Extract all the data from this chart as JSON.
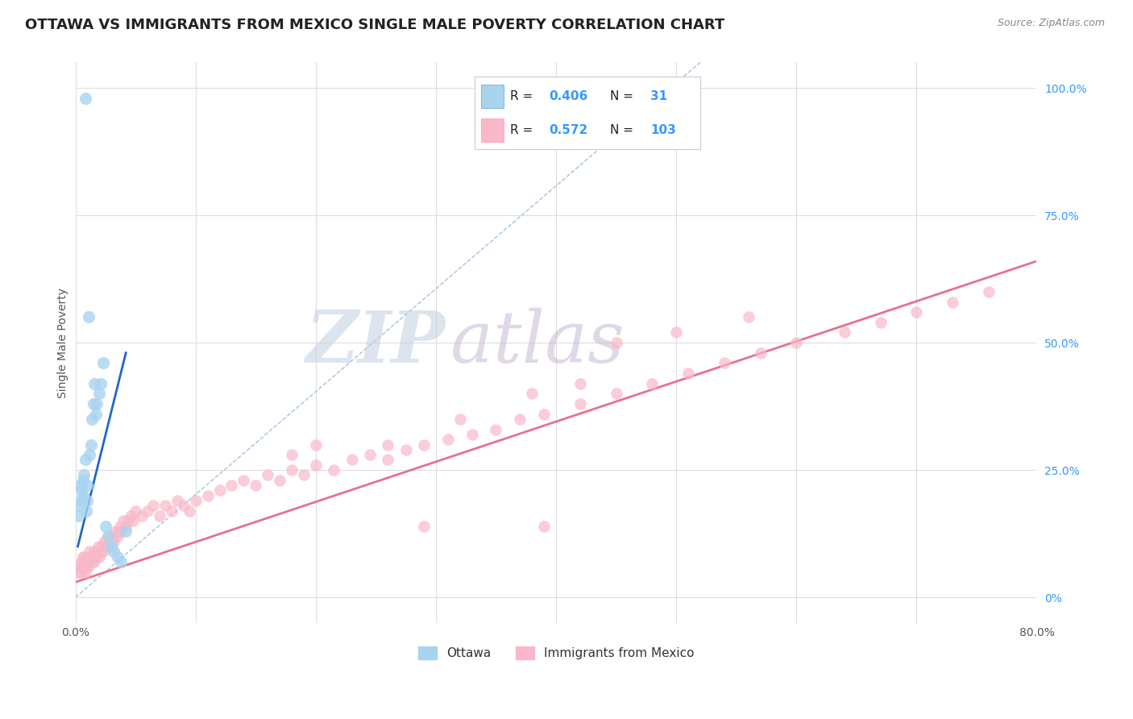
{
  "title": "OTTAWA VS IMMIGRANTS FROM MEXICO SINGLE MALE POVERTY CORRELATION CHART",
  "source": "Source: ZipAtlas.com",
  "ylabel": "Single Male Poverty",
  "xlim": [
    0.0,
    0.8
  ],
  "ylim": [
    -0.05,
    1.05
  ],
  "y_ticks_right": [
    0.0,
    0.25,
    0.5,
    0.75,
    1.0
  ],
  "y_tick_labels_right": [
    "0%",
    "25.0%",
    "50.0%",
    "75.0%",
    "100.0%"
  ],
  "ottawa_color": "#a8d4f0",
  "mexico_color": "#f9b8c8",
  "ottawa_line_color": "#2266cc",
  "mexico_line_color": "#e87090",
  "diag_color": "#99bbdd",
  "ottawa_R": "0.406",
  "ottawa_N": "31",
  "mexico_R": "0.572",
  "mexico_N": "103",
  "legend_text_color": "#3399ff",
  "title_color": "#222222",
  "watermark": "ZIPatlas",
  "watermark_color_zip": "#c0cfe0",
  "watermark_color_atlas": "#c8b8d8",
  "background_color": "#ffffff",
  "grid_color": "#dddddd",
  "ottawa_scatter_x": [
    0.002,
    0.003,
    0.004,
    0.005,
    0.005,
    0.006,
    0.006,
    0.007,
    0.008,
    0.008,
    0.009,
    0.01,
    0.01,
    0.011,
    0.012,
    0.013,
    0.014,
    0.015,
    0.016,
    0.017,
    0.018,
    0.02,
    0.021,
    0.023,
    0.025,
    0.027,
    0.03,
    0.032,
    0.035,
    0.038,
    0.042
  ],
  "ottawa_scatter_y": [
    0.16,
    0.18,
    0.22,
    0.19,
    0.21,
    0.2,
    0.23,
    0.24,
    0.98,
    0.27,
    0.17,
    0.19,
    0.22,
    0.55,
    0.28,
    0.3,
    0.35,
    0.38,
    0.42,
    0.36,
    0.38,
    0.4,
    0.42,
    0.46,
    0.14,
    0.12,
    0.1,
    0.09,
    0.08,
    0.07,
    0.13
  ],
  "mexico_scatter_x": [
    0.002,
    0.003,
    0.004,
    0.005,
    0.005,
    0.006,
    0.006,
    0.007,
    0.007,
    0.008,
    0.008,
    0.009,
    0.01,
    0.01,
    0.011,
    0.011,
    0.012,
    0.012,
    0.013,
    0.014,
    0.015,
    0.016,
    0.016,
    0.017,
    0.018,
    0.019,
    0.02,
    0.021,
    0.022,
    0.023,
    0.024,
    0.025,
    0.026,
    0.027,
    0.028,
    0.03,
    0.031,
    0.032,
    0.033,
    0.035,
    0.036,
    0.037,
    0.038,
    0.04,
    0.042,
    0.044,
    0.046,
    0.048,
    0.05,
    0.055,
    0.06,
    0.065,
    0.07,
    0.075,
    0.08,
    0.085,
    0.09,
    0.095,
    0.1,
    0.11,
    0.12,
    0.13,
    0.14,
    0.15,
    0.16,
    0.17,
    0.18,
    0.19,
    0.2,
    0.215,
    0.23,
    0.245,
    0.26,
    0.275,
    0.29,
    0.31,
    0.33,
    0.35,
    0.37,
    0.39,
    0.42,
    0.45,
    0.48,
    0.51,
    0.54,
    0.57,
    0.6,
    0.64,
    0.67,
    0.7,
    0.73,
    0.76,
    0.45,
    0.38,
    0.42,
    0.5,
    0.56,
    0.32,
    0.26,
    0.29,
    0.18,
    0.2,
    0.39
  ],
  "mexico_scatter_y": [
    0.05,
    0.06,
    0.05,
    0.07,
    0.06,
    0.08,
    0.07,
    0.06,
    0.08,
    0.07,
    0.05,
    0.06,
    0.08,
    0.07,
    0.06,
    0.08,
    0.07,
    0.09,
    0.08,
    0.07,
    0.08,
    0.09,
    0.07,
    0.08,
    0.09,
    0.1,
    0.08,
    0.09,
    0.1,
    0.09,
    0.11,
    0.1,
    0.11,
    0.1,
    0.12,
    0.11,
    0.12,
    0.11,
    0.13,
    0.12,
    0.13,
    0.14,
    0.13,
    0.15,
    0.14,
    0.15,
    0.16,
    0.15,
    0.17,
    0.16,
    0.17,
    0.18,
    0.16,
    0.18,
    0.17,
    0.19,
    0.18,
    0.17,
    0.19,
    0.2,
    0.21,
    0.22,
    0.23,
    0.22,
    0.24,
    0.23,
    0.25,
    0.24,
    0.26,
    0.25,
    0.27,
    0.28,
    0.27,
    0.29,
    0.3,
    0.31,
    0.32,
    0.33,
    0.35,
    0.36,
    0.38,
    0.4,
    0.42,
    0.44,
    0.46,
    0.48,
    0.5,
    0.52,
    0.54,
    0.56,
    0.58,
    0.6,
    0.5,
    0.4,
    0.42,
    0.52,
    0.55,
    0.35,
    0.3,
    0.14,
    0.28,
    0.3,
    0.14
  ],
  "ottawa_line_x": [
    0.002,
    0.042
  ],
  "ottawa_line_y": [
    0.1,
    0.48
  ],
  "mexico_line_x": [
    0.0,
    0.8
  ],
  "mexico_line_y": [
    0.03,
    0.66
  ],
  "diag_line_x": [
    0.0,
    0.52
  ],
  "diag_line_y": [
    0.0,
    1.05
  ]
}
